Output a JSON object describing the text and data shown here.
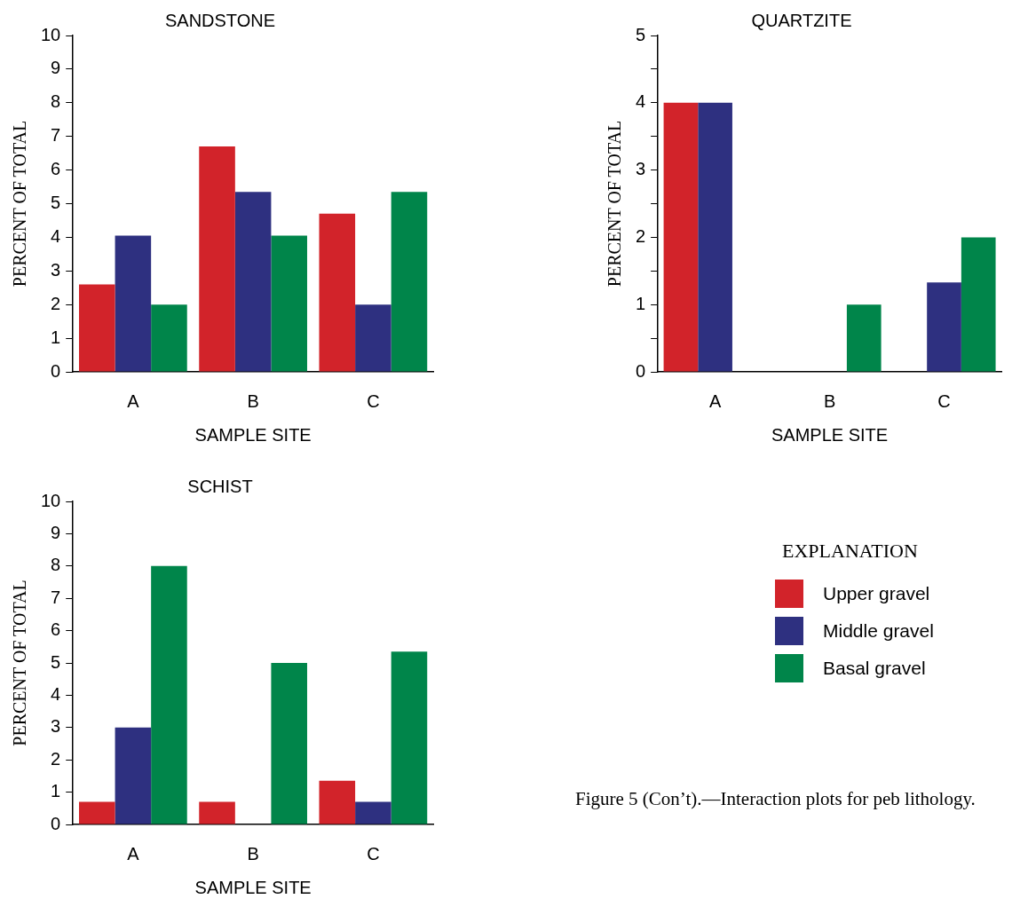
{
  "chart_data": [
    {
      "type": "bar",
      "title": "SANDSTONE",
      "xlabel": "SAMPLE SITE",
      "ylabel": "PERCENT OF TOTAL",
      "categories": [
        "A",
        "B",
        "C"
      ],
      "ylim": [
        0,
        10
      ],
      "yticks": [
        0,
        1,
        2,
        3,
        4,
        5,
        6,
        7,
        8,
        9,
        10
      ],
      "series": [
        {
          "color": "#d2232a",
          "values": [
            2.6,
            6.7,
            4.7
          ]
        },
        {
          "color": "#2e3080",
          "values": [
            4.05,
            5.35,
            2.0
          ]
        },
        {
          "color": "#00854a",
          "values": [
            2.0,
            4.05,
            5.35
          ]
        }
      ]
    },
    {
      "type": "bar",
      "title": "QUARTZITE",
      "xlabel": "SAMPLE SITE",
      "ylabel": "PERCENT OF TOTAL",
      "categories": [
        "A",
        "B",
        "C"
      ],
      "ylim": [
        0,
        5
      ],
      "yticks": [
        0,
        {
          "value": 0.5,
          "label": null
        },
        1,
        {
          "value": 1.5,
          "label": null
        },
        2,
        {
          "value": 2.5,
          "label": null
        },
        3,
        {
          "value": 3.5,
          "label": null
        },
        4,
        {
          "value": 4.5,
          "label": null
        },
        5
      ],
      "series": [
        {
          "color": "#d2232a",
          "values": [
            4,
            0,
            0
          ]
        },
        {
          "color": "#2e3080",
          "values": [
            4,
            0,
            1.33
          ]
        },
        {
          "color": "#00854a",
          "values": [
            0,
            1,
            2
          ]
        }
      ]
    },
    {
      "type": "bar",
      "title": "SCHIST",
      "xlabel": "SAMPLE SITE",
      "ylabel": "PERCENT OF TOTAL",
      "categories": [
        "A",
        "B",
        "C"
      ],
      "ylim": [
        0,
        10
      ],
      "yticks": [
        0,
        1,
        2,
        3,
        4,
        5,
        6,
        7,
        8,
        9,
        10
      ],
      "legend": "right",
      "legend_title": "EXPLANATION",
      "annotations": [
        "Figure 5 (Con’t).—Interaction plots for peb lithology."
      ],
      "series": [
        {
          "name": "Upper gravel",
          "color": "#d2232a",
          "values": [
            0.7,
            0.7,
            1.35
          ]
        },
        {
          "name": "Middle gravel",
          "color": "#2e3080",
          "values": [
            3.0,
            0,
            0.7
          ]
        },
        {
          "name": "Basal gravel",
          "color": "#00854a",
          "values": [
            8.0,
            5.0,
            5.35
          ]
        }
      ]
    }
  ]
}
